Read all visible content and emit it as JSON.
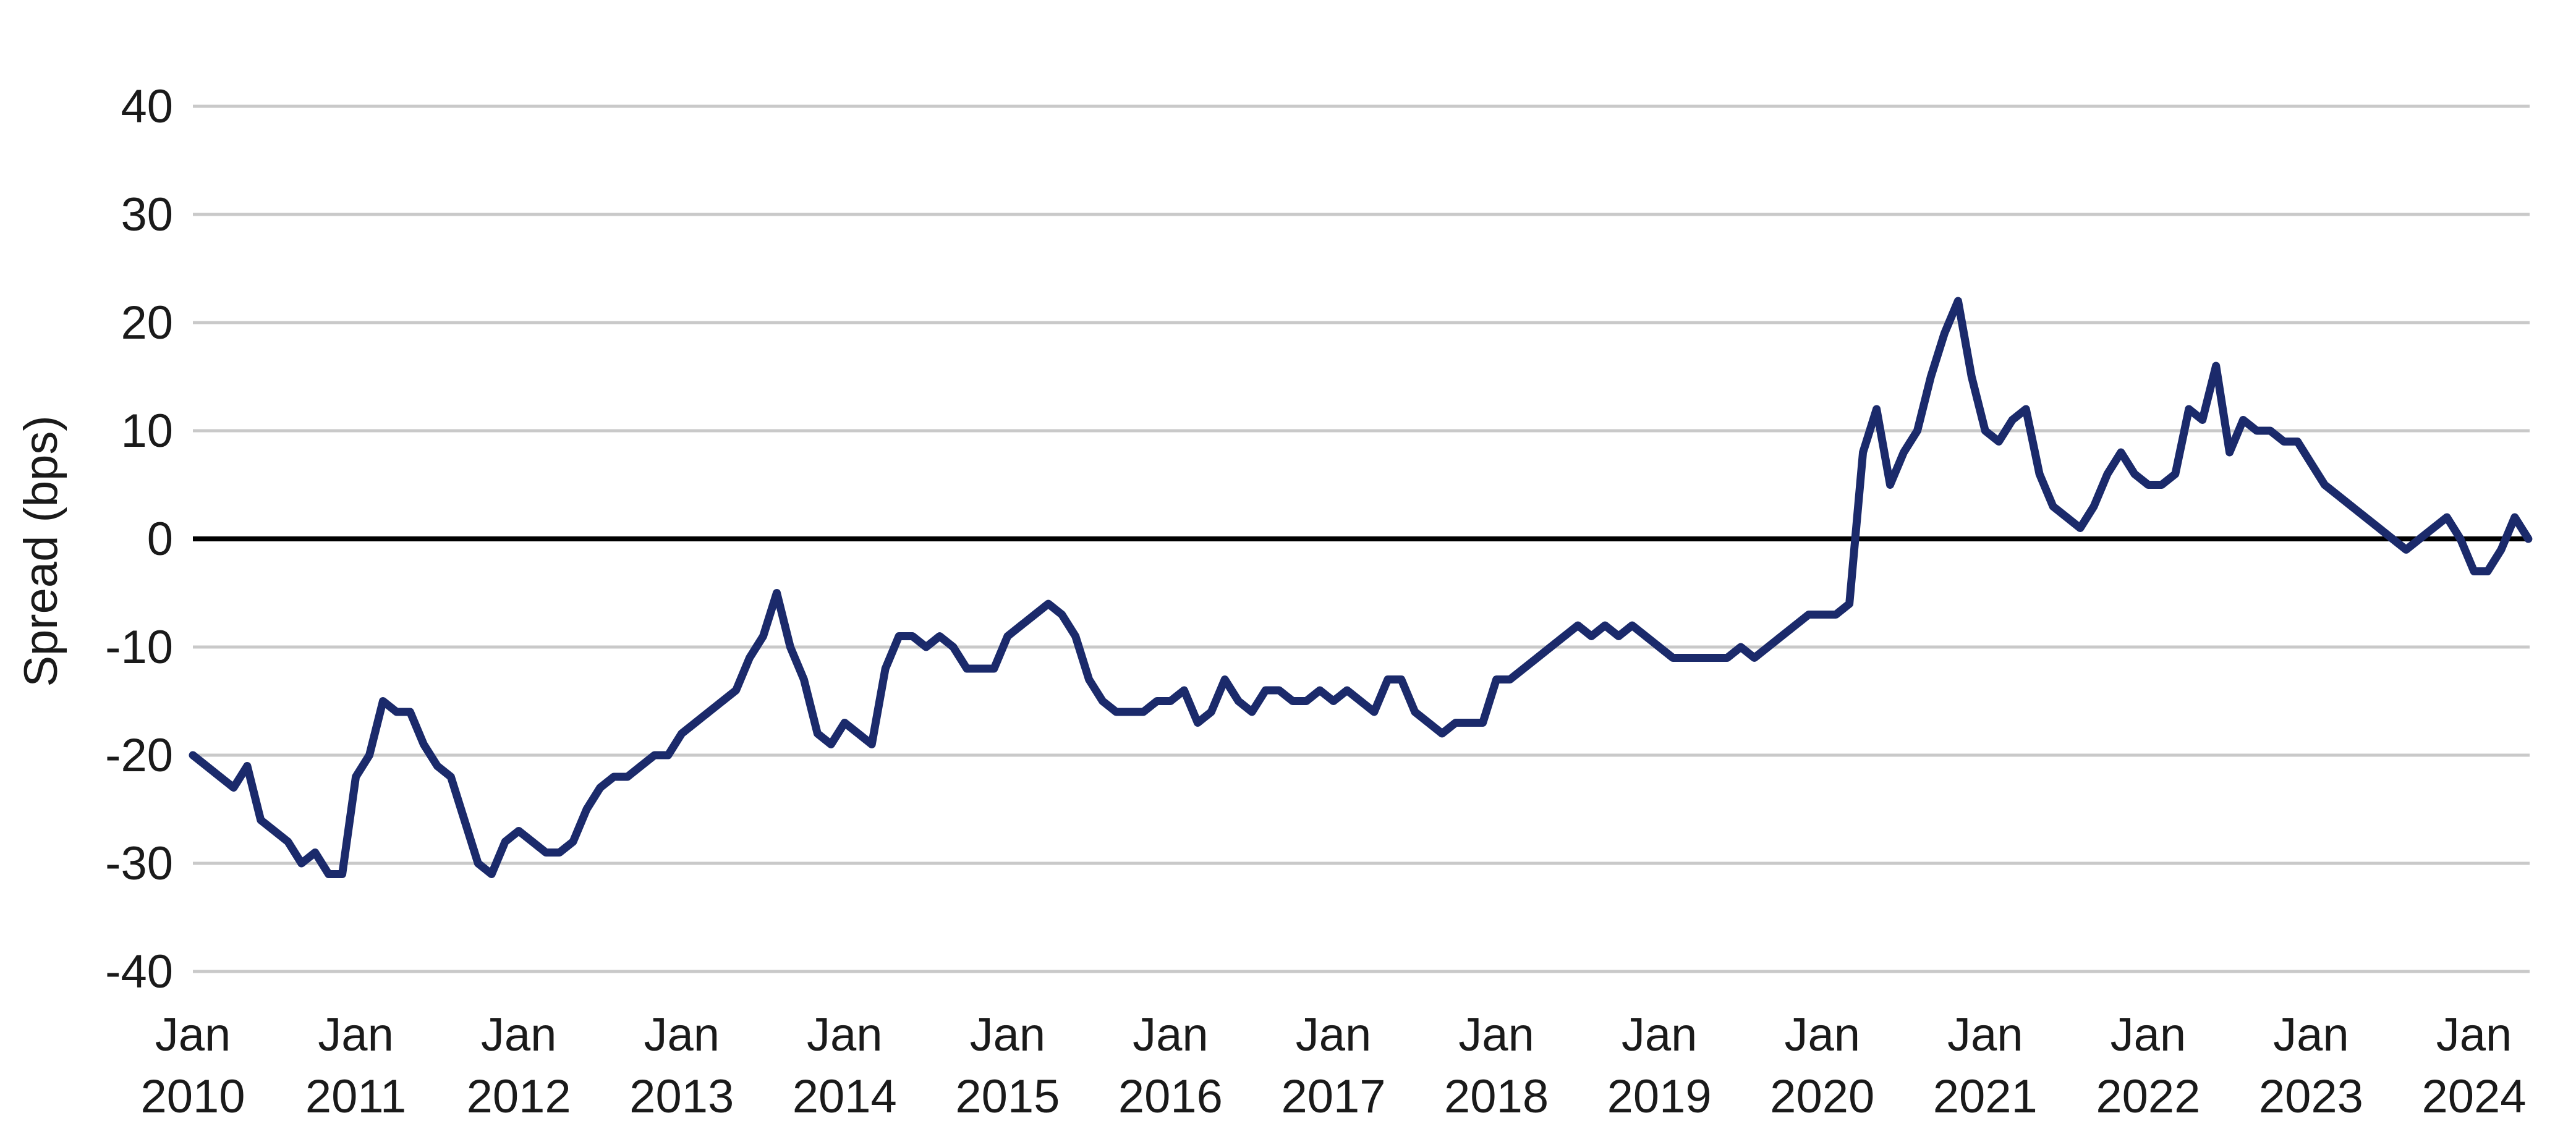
{
  "chart_data": {
    "type": "line",
    "title": "",
    "xlabel": "",
    "ylabel": "Spread (bps)",
    "ylim": [
      -40,
      40
    ],
    "yticks": [
      -40,
      -30,
      -20,
      -10,
      0,
      10,
      20,
      30,
      40
    ],
    "xlim": [
      "2010-01",
      "2024-05"
    ],
    "xticks": [
      {
        "date": "2010-01",
        "line1": "Jan",
        "line2": "2010"
      },
      {
        "date": "2011-01",
        "line1": "Jan",
        "line2": "2011"
      },
      {
        "date": "2012-01",
        "line1": "Jan",
        "line2": "2012"
      },
      {
        "date": "2013-01",
        "line1": "Jan",
        "line2": "2013"
      },
      {
        "date": "2014-01",
        "line1": "Jan",
        "line2": "2014"
      },
      {
        "date": "2015-01",
        "line1": "Jan",
        "line2": "2015"
      },
      {
        "date": "2016-01",
        "line1": "Jan",
        "line2": "2016"
      },
      {
        "date": "2017-01",
        "line1": "Jan",
        "line2": "2017"
      },
      {
        "date": "2018-01",
        "line1": "Jan",
        "line2": "2018"
      },
      {
        "date": "2019-01",
        "line1": "Jan",
        "line2": "2019"
      },
      {
        "date": "2020-01",
        "line1": "Jan",
        "line2": "2020"
      },
      {
        "date": "2021-01",
        "line1": "Jan",
        "line2": "2021"
      },
      {
        "date": "2022-01",
        "line1": "Jan",
        "line2": "2022"
      },
      {
        "date": "2023-01",
        "line1": "Jan",
        "line2": "2023"
      },
      {
        "date": "2024-01",
        "line1": "Jan",
        "line2": "2024"
      }
    ],
    "grid": true,
    "zero_line": true,
    "series": [
      {
        "color": "#1b2a6b",
        "points": [
          [
            "2010-01",
            -20
          ],
          [
            "2010-02",
            -21
          ],
          [
            "2010-03",
            -22
          ],
          [
            "2010-04",
            -23
          ],
          [
            "2010-05",
            -21
          ],
          [
            "2010-06",
            -26
          ],
          [
            "2010-07",
            -27
          ],
          [
            "2010-08",
            -28
          ],
          [
            "2010-09",
            -30
          ],
          [
            "2010-10",
            -29
          ],
          [
            "2010-11",
            -31
          ],
          [
            "2010-12",
            -31
          ],
          [
            "2011-01",
            -22
          ],
          [
            "2011-02",
            -20
          ],
          [
            "2011-03",
            -15
          ],
          [
            "2011-04",
            -16
          ],
          [
            "2011-05",
            -16
          ],
          [
            "2011-06",
            -19
          ],
          [
            "2011-07",
            -21
          ],
          [
            "2011-08",
            -22
          ],
          [
            "2011-09",
            -26
          ],
          [
            "2011-10",
            -30
          ],
          [
            "2011-11",
            -31
          ],
          [
            "2011-12",
            -28
          ],
          [
            "2012-01",
            -27
          ],
          [
            "2012-02",
            -28
          ],
          [
            "2012-03",
            -29
          ],
          [
            "2012-04",
            -29
          ],
          [
            "2012-05",
            -28
          ],
          [
            "2012-06",
            -25
          ],
          [
            "2012-07",
            -23
          ],
          [
            "2012-08",
            -22
          ],
          [
            "2012-09",
            -22
          ],
          [
            "2012-10",
            -21
          ],
          [
            "2012-11",
            -20
          ],
          [
            "2012-12",
            -20
          ],
          [
            "2013-01",
            -18
          ],
          [
            "2013-02",
            -17
          ],
          [
            "2013-03",
            -16
          ],
          [
            "2013-04",
            -15
          ],
          [
            "2013-05",
            -14
          ],
          [
            "2013-06",
            -11
          ],
          [
            "2013-07",
            -9
          ],
          [
            "2013-08",
            -5
          ],
          [
            "2013-09",
            -10
          ],
          [
            "2013-10",
            -13
          ],
          [
            "2013-11",
            -18
          ],
          [
            "2013-12",
            -19
          ],
          [
            "2014-01",
            -17
          ],
          [
            "2014-02",
            -18
          ],
          [
            "2014-03",
            -19
          ],
          [
            "2014-04",
            -12
          ],
          [
            "2014-05",
            -9
          ],
          [
            "2014-06",
            -9
          ],
          [
            "2014-07",
            -10
          ],
          [
            "2014-08",
            -9
          ],
          [
            "2014-09",
            -10
          ],
          [
            "2014-10",
            -12
          ],
          [
            "2014-11",
            -12
          ],
          [
            "2014-12",
            -12
          ],
          [
            "2015-01",
            -9
          ],
          [
            "2015-02",
            -8
          ],
          [
            "2015-03",
            -7
          ],
          [
            "2015-04",
            -6
          ],
          [
            "2015-05",
            -7
          ],
          [
            "2015-06",
            -9
          ],
          [
            "2015-07",
            -13
          ],
          [
            "2015-08",
            -15
          ],
          [
            "2015-09",
            -16
          ],
          [
            "2015-10",
            -16
          ],
          [
            "2015-11",
            -16
          ],
          [
            "2015-12",
            -15
          ],
          [
            "2016-01",
            -15
          ],
          [
            "2016-02",
            -14
          ],
          [
            "2016-03",
            -17
          ],
          [
            "2016-04",
            -16
          ],
          [
            "2016-05",
            -13
          ],
          [
            "2016-06",
            -15
          ],
          [
            "2016-07",
            -16
          ],
          [
            "2016-08",
            -14
          ],
          [
            "2016-09",
            -14
          ],
          [
            "2016-10",
            -15
          ],
          [
            "2016-11",
            -15
          ],
          [
            "2016-12",
            -14
          ],
          [
            "2017-01",
            -15
          ],
          [
            "2017-02",
            -14
          ],
          [
            "2017-03",
            -15
          ],
          [
            "2017-04",
            -16
          ],
          [
            "2017-05",
            -13
          ],
          [
            "2017-06",
            -13
          ],
          [
            "2017-07",
            -16
          ],
          [
            "2017-08",
            -17
          ],
          [
            "2017-09",
            -18
          ],
          [
            "2017-10",
            -17
          ],
          [
            "2017-11",
            -17
          ],
          [
            "2017-12",
            -17
          ],
          [
            "2018-01",
            -13
          ],
          [
            "2018-02",
            -13
          ],
          [
            "2018-03",
            -12
          ],
          [
            "2018-04",
            -11
          ],
          [
            "2018-05",
            -10
          ],
          [
            "2018-06",
            -9
          ],
          [
            "2018-07",
            -8
          ],
          [
            "2018-08",
            -9
          ],
          [
            "2018-09",
            -8
          ],
          [
            "2018-10",
            -9
          ],
          [
            "2018-11",
            -8
          ],
          [
            "2018-12",
            -9
          ],
          [
            "2019-01",
            -10
          ],
          [
            "2019-02",
            -11
          ],
          [
            "2019-03",
            -11
          ],
          [
            "2019-04",
            -11
          ],
          [
            "2019-05",
            -11
          ],
          [
            "2019-06",
            -11
          ],
          [
            "2019-07",
            -10
          ],
          [
            "2019-08",
            -11
          ],
          [
            "2019-09",
            -10
          ],
          [
            "2019-10",
            -9
          ],
          [
            "2019-11",
            -8
          ],
          [
            "2019-12",
            -7
          ],
          [
            "2020-01",
            -7
          ],
          [
            "2020-02",
            -7
          ],
          [
            "2020-03",
            -6
          ],
          [
            "2020-04",
            8
          ],
          [
            "2020-05",
            12
          ],
          [
            "2020-06",
            5
          ],
          [
            "2020-07",
            8
          ],
          [
            "2020-08",
            10
          ],
          [
            "2020-09",
            15
          ],
          [
            "2020-10",
            19
          ],
          [
            "2020-11",
            22
          ],
          [
            "2020-12",
            15
          ],
          [
            "2021-01",
            10
          ],
          [
            "2021-02",
            9
          ],
          [
            "2021-03",
            11
          ],
          [
            "2021-04",
            12
          ],
          [
            "2021-05",
            6
          ],
          [
            "2021-06",
            3
          ],
          [
            "2021-07",
            2
          ],
          [
            "2021-08",
            1
          ],
          [
            "2021-09",
            3
          ],
          [
            "2021-10",
            6
          ],
          [
            "2021-11",
            8
          ],
          [
            "2021-12",
            6
          ],
          [
            "2022-01",
            5
          ],
          [
            "2022-02",
            5
          ],
          [
            "2022-03",
            6
          ],
          [
            "2022-04",
            12
          ],
          [
            "2022-05",
            11
          ],
          [
            "2022-06",
            16
          ],
          [
            "2022-07",
            8
          ],
          [
            "2022-08",
            11
          ],
          [
            "2022-09",
            10
          ],
          [
            "2022-10",
            10
          ],
          [
            "2022-11",
            9
          ],
          [
            "2022-12",
            9
          ],
          [
            "2023-01",
            7
          ],
          [
            "2023-02",
            5
          ],
          [
            "2023-03",
            4
          ],
          [
            "2023-04",
            3
          ],
          [
            "2023-05",
            2
          ],
          [
            "2023-06",
            1
          ],
          [
            "2023-07",
            0
          ],
          [
            "2023-08",
            -1
          ],
          [
            "2023-09",
            0
          ],
          [
            "2023-10",
            1
          ],
          [
            "2023-11",
            2
          ],
          [
            "2023-12",
            0
          ],
          [
            "2024-01",
            -3
          ],
          [
            "2024-02",
            -3
          ],
          [
            "2024-03",
            -1
          ],
          [
            "2024-04",
            2
          ],
          [
            "2024-05",
            0
          ]
        ]
      }
    ]
  }
}
